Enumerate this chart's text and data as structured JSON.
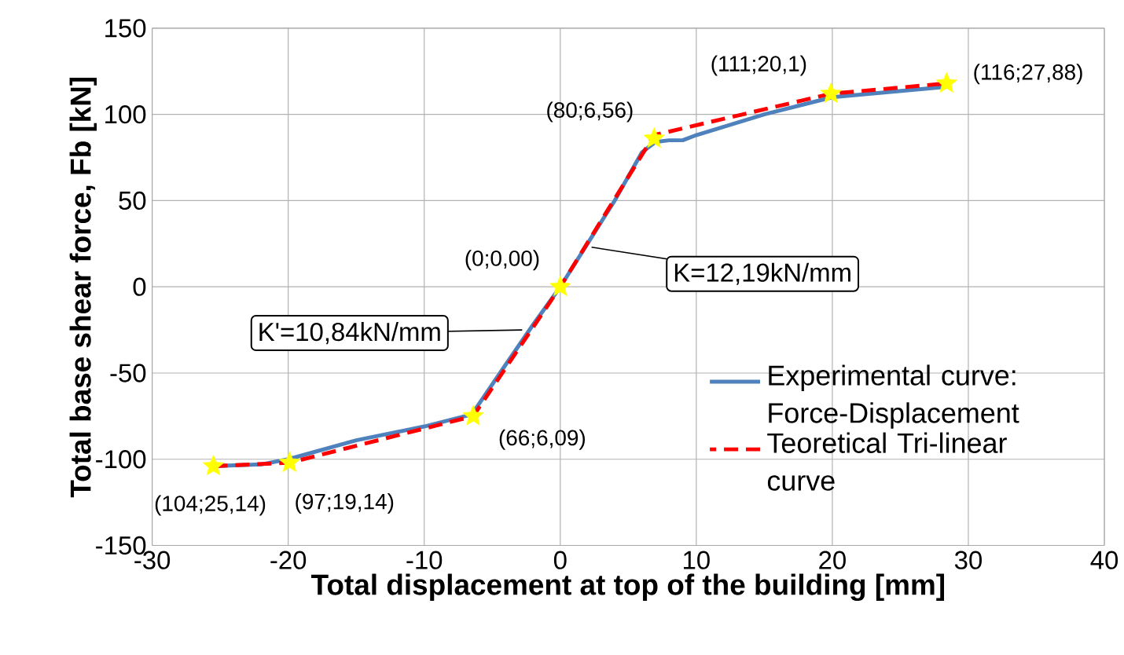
{
  "chart_data": {
    "type": "line",
    "xlabel": "Total displacement at top of the building [mm]",
    "ylabel": "Total base shear force, Fb [kN]",
    "xlim": [
      -30,
      40
    ],
    "xticks": [
      -30,
      -20,
      -10,
      0,
      10,
      20,
      30,
      40
    ],
    "ylim": [
      -150,
      150
    ],
    "yticks": [
      -150,
      -100,
      -50,
      0,
      50,
      100,
      150
    ],
    "grid": true,
    "legend": "bottom right",
    "series": [
      {
        "name": "Experimental curve: Force-Displacement",
        "color": "#4f81bd",
        "line_style": "solid",
        "marker": "none",
        "x": [
          -25.5,
          -22,
          -20,
          -15,
          -10,
          -6.5,
          -4,
          -2,
          0,
          2,
          4,
          6,
          7,
          8,
          9,
          10,
          15,
          20,
          28.4
        ],
        "values": [
          -104,
          -103,
          -100,
          -89,
          -81,
          -74,
          -45,
          -22,
          0,
          25,
          50,
          78,
          84,
          85,
          85,
          88,
          100,
          110,
          116
        ]
      },
      {
        "name": "Teoretical Tri-linear curve",
        "color": "#ff0000",
        "line_style": "dashed",
        "marker": "none",
        "x": [
          -25.5,
          -19.9,
          -6.4,
          0,
          6.9,
          19.9,
          28.4
        ],
        "values": [
          -104,
          -102,
          -75,
          0,
          88,
          112,
          118
        ]
      },
      {
        "color": "#ffff00",
        "type": "scatter",
        "marker": "star",
        "x": [
          -25.5,
          -19.9,
          -6.4,
          0,
          6.9,
          19.9,
          28.4
        ],
        "values": [
          -104,
          -102,
          -75,
          0,
          86,
          112,
          118
        ]
      }
    ],
    "annotations": [
      {
        "text": "K'=10,84kN/mm",
        "x": -2.8,
        "y": -25
      },
      {
        "text": "K=12,19kN/mm",
        "x": 2.3,
        "y": 23
      },
      {
        "text": "(104;25,14)",
        "x": -25.5,
        "y": -104
      },
      {
        "text": "(97;19,14)",
        "x": -19.9,
        "y": -102
      },
      {
        "text": "(66;6,09)",
        "x": -6.4,
        "y": -75
      },
      {
        "text": "(0;0,00)",
        "x": 0,
        "y": 0
      },
      {
        "text": "(80;6,56)",
        "x": 6.9,
        "y": 86
      },
      {
        "text": "(111;20,1)",
        "x": 19.9,
        "y": 112
      },
      {
        "text": "(116;27,88)",
        "x": 28.4,
        "y": 118
      }
    ]
  }
}
